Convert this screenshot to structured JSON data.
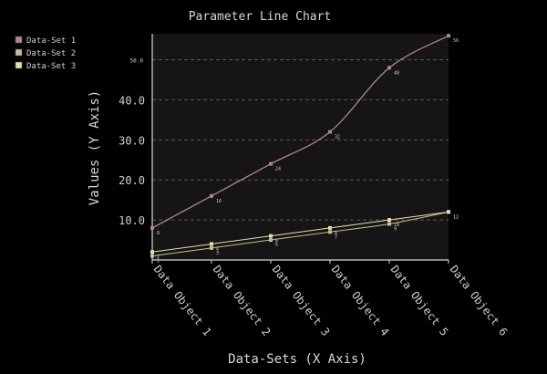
{
  "chart_data": {
    "type": "line",
    "title": "Parameter Line Chart",
    "xlabel": "Data-Sets (X Axis)",
    "ylabel": "Values (Y Axis)",
    "categories": [
      "Data Object 1",
      "Data Object 2",
      "Data Object 3",
      "Data Object 4",
      "Data Object 5",
      "Data Object 6"
    ],
    "ylim": [
      0,
      56.5
    ],
    "yticks": [
      {
        "value": 10,
        "label": "10.0"
      },
      {
        "value": 20,
        "label": "20.0"
      },
      {
        "value": 30,
        "label": "30.0"
      },
      {
        "value": 40,
        "label": "40.0"
      },
      {
        "value": 50,
        "label": "50.0"
      }
    ],
    "grid": true,
    "legend_position": "top-left",
    "series": [
      {
        "name": "Data-Set 1",
        "color": "#b3838e",
        "values": [
          8,
          16,
          24,
          32,
          48,
          56
        ],
        "labels": [
          "8",
          "16",
          "24",
          "32",
          "48",
          "56"
        ]
      },
      {
        "name": "Data-Set 2",
        "color": "#c9bf8e",
        "values": [
          1,
          3,
          5,
          7,
          9,
          12
        ],
        "labels": [
          "1",
          "3",
          "5",
          "7",
          "9",
          "12"
        ]
      },
      {
        "name": "Data-Set 3",
        "color": "#e6dfa8",
        "values": [
          2,
          4,
          6,
          8,
          10,
          12
        ],
        "labels": [
          "2",
          "4",
          "6",
          "8",
          "10",
          "12"
        ]
      }
    ]
  }
}
